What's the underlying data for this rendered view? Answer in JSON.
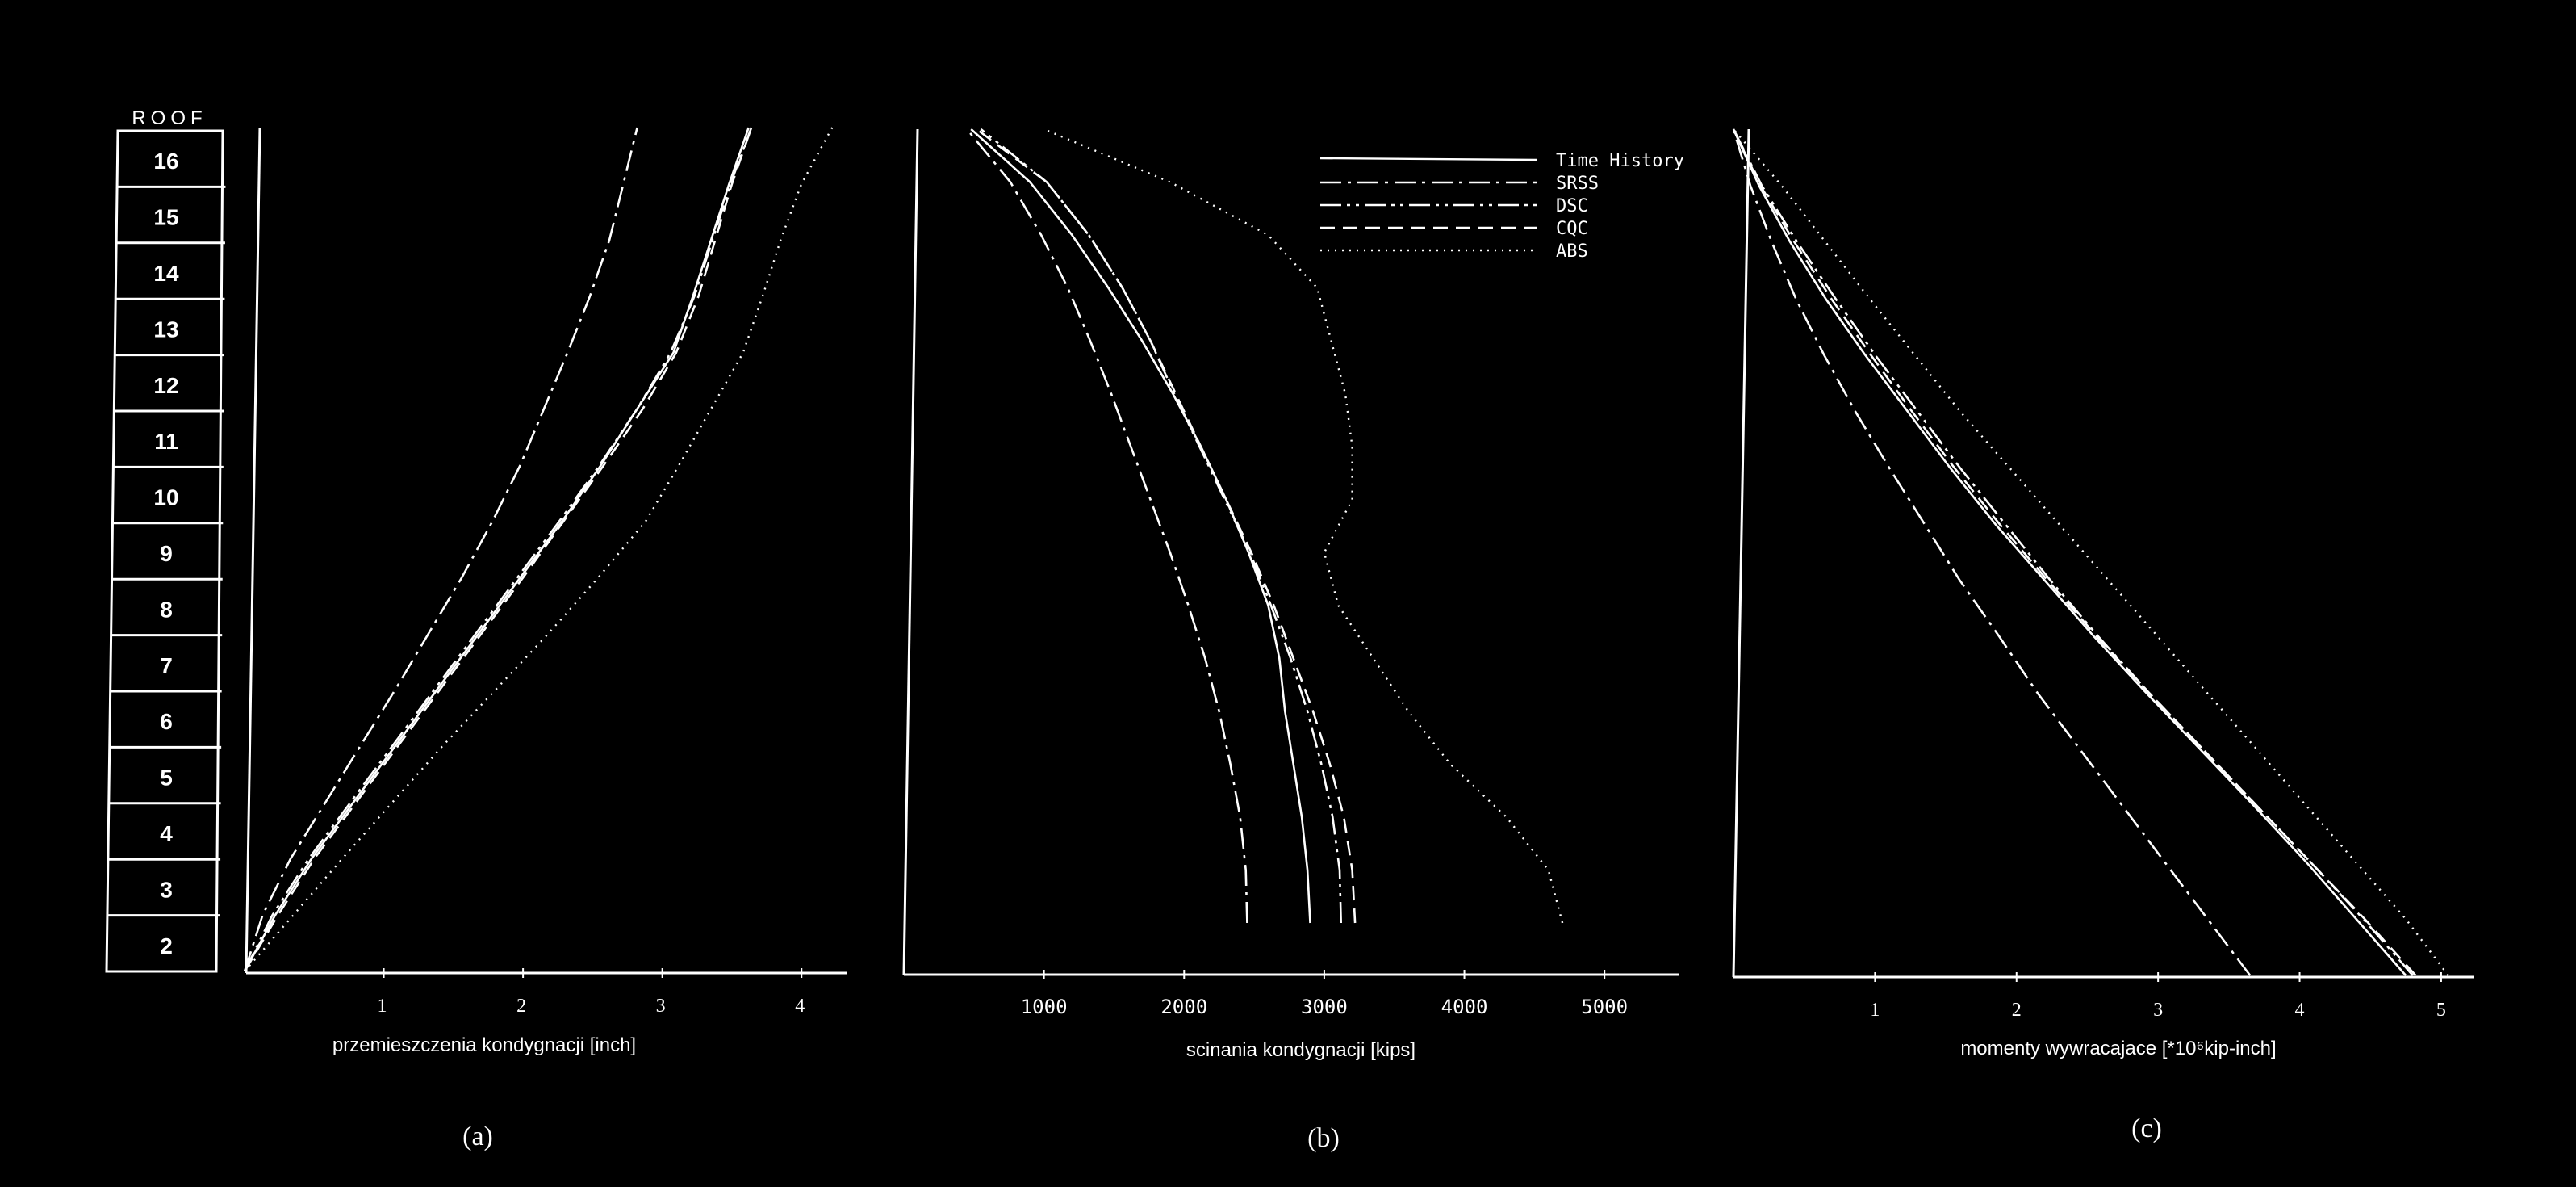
{
  "storey_labels": [
    "ROOF",
    "16",
    "15",
    "14",
    "13",
    "12",
    "11",
    "10",
    "9",
    "8",
    "7",
    "6",
    "5",
    "4",
    "3",
    "2"
  ],
  "legend": [
    {
      "name": "Time History",
      "style": "solid"
    },
    {
      "name": "SRSS",
      "style": "dashdot"
    },
    {
      "name": "DSC",
      "style": "dashdotdot"
    },
    {
      "name": "CQC",
      "style": "dashed"
    },
    {
      "name": "ABS",
      "style": "dotted"
    }
  ],
  "chart_data": [
    {
      "type": "line",
      "panel_label": "(a)",
      "xlabel": "przemieszczenia kondygnacji  [inch]",
      "ylabel": "",
      "xlim": [
        0,
        4.3
      ],
      "xticks": [
        1,
        2,
        3,
        4
      ],
      "y": [
        0,
        1,
        2,
        3,
        4,
        5,
        6,
        7,
        8,
        9,
        10,
        11,
        12,
        13,
        14,
        15
      ],
      "series": [
        {
          "name": "Time History",
          "values": [
            0,
            0.22,
            0.48,
            0.78,
            1.08,
            1.38,
            1.68,
            1.98,
            2.28,
            2.56,
            2.82,
            3.08,
            3.22,
            3.35,
            3.48,
            3.62
          ]
        },
        {
          "name": "SRSS",
          "values": [
            0,
            0.13,
            0.33,
            0.58,
            0.83,
            1.08,
            1.32,
            1.56,
            1.78,
            1.98,
            2.15,
            2.32,
            2.48,
            2.62,
            2.72,
            2.82
          ]
        },
        {
          "name": "DSC",
          "values": [
            0,
            0.2,
            0.46,
            0.76,
            1.06,
            1.36,
            1.66,
            1.96,
            2.26,
            2.55,
            2.82,
            3.06,
            3.23,
            3.36,
            3.49,
            3.64
          ]
        },
        {
          "name": "CQC",
          "values": [
            0,
            0.24,
            0.5,
            0.8,
            1.1,
            1.4,
            1.7,
            2.0,
            2.29,
            2.58,
            2.86,
            3.1,
            3.26,
            3.38,
            3.5,
            3.64
          ]
        },
        {
          "name": "ABS",
          "values": [
            0,
            0.35,
            0.7,
            1.06,
            1.42,
            1.8,
            2.18,
            2.54,
            2.88,
            3.12,
            3.35,
            3.58,
            3.72,
            3.85,
            4.0,
            4.22
          ]
        }
      ]
    },
    {
      "type": "line",
      "panel_label": "(b)",
      "xlabel": "scinania kondygnacji  [kips]",
      "ylabel": "",
      "xlim": [
        0,
        5500
      ],
      "xticks": [
        1000,
        2000,
        3000,
        4000,
        5000
      ],
      "y": [
        0,
        1,
        2,
        3,
        4,
        5,
        6,
        7,
        8,
        9,
        10,
        11,
        12,
        13,
        14,
        15
      ],
      "series": [
        {
          "name": "Time History",
          "values": [
            2900,
            2880,
            2840,
            2780,
            2720,
            2680,
            2600,
            2460,
            2300,
            2120,
            1920,
            1700,
            1460,
            1200,
            900,
            480
          ]
        },
        {
          "name": "SRSS",
          "values": [
            2450,
            2440,
            2400,
            2330,
            2250,
            2150,
            2030,
            1900,
            1760,
            1620,
            1480,
            1330,
            1170,
            980,
            760,
            450
          ]
        },
        {
          "name": "DSC",
          "values": [
            3120,
            3110,
            3060,
            2980,
            2880,
            2760,
            2620,
            2470,
            2290,
            2110,
            1930,
            1760,
            1560,
            1320,
            1020,
            550
          ]
        },
        {
          "name": "CQC",
          "values": [
            3220,
            3200,
            3140,
            3040,
            2920,
            2780,
            2640,
            2480,
            2300,
            2120,
            1940,
            1760,
            1560,
            1320,
            1020,
            520
          ]
        },
        {
          "name": "ABS",
          "values": [
            4700,
            4600,
            4300,
            3900,
            3600,
            3350,
            3100,
            3000,
            3200,
            3200,
            3150,
            3050,
            2950,
            2600,
            1900,
            1000
          ]
        }
      ]
    },
    {
      "type": "line",
      "panel_label": "(c)",
      "xlabel": "momenty wywracajace  [*10⁶kip-inch]",
      "ylabel": "",
      "xlim": [
        0,
        5.2
      ],
      "xticks": [
        1,
        2,
        3,
        4,
        5
      ],
      "y": [
        0,
        1,
        2,
        3,
        4,
        5,
        6,
        7,
        8,
        9,
        10,
        11,
        12,
        13,
        14,
        15
      ],
      "series": [
        {
          "name": "Time History",
          "values": [
            4.75,
            4.4,
            4.05,
            3.68,
            3.3,
            2.92,
            2.55,
            2.2,
            1.85,
            1.53,
            1.23,
            0.93,
            0.65,
            0.4,
            0.18,
            0
          ]
        },
        {
          "name": "SRSS",
          "values": [
            3.65,
            3.35,
            3.05,
            2.75,
            2.45,
            2.15,
            1.88,
            1.6,
            1.35,
            1.1,
            0.86,
            0.64,
            0.44,
            0.27,
            0.12,
            0
          ]
        },
        {
          "name": "DSC",
          "values": [
            4.8,
            4.45,
            4.08,
            3.7,
            3.32,
            2.94,
            2.58,
            2.24,
            1.92,
            1.6,
            1.3,
            1.0,
            0.72,
            0.45,
            0.2,
            0
          ]
        },
        {
          "name": "CQC",
          "values": [
            4.82,
            4.46,
            4.08,
            3.7,
            3.32,
            2.94,
            2.57,
            2.22,
            1.88,
            1.56,
            1.26,
            0.97,
            0.69,
            0.43,
            0.19,
            0
          ]
        },
        {
          "name": "ABS",
          "values": [
            5.05,
            4.75,
            4.4,
            4.05,
            3.7,
            3.35,
            3.0,
            2.65,
            2.3,
            1.95,
            1.6,
            1.28,
            0.96,
            0.65,
            0.34,
            0
          ]
        }
      ]
    }
  ]
}
